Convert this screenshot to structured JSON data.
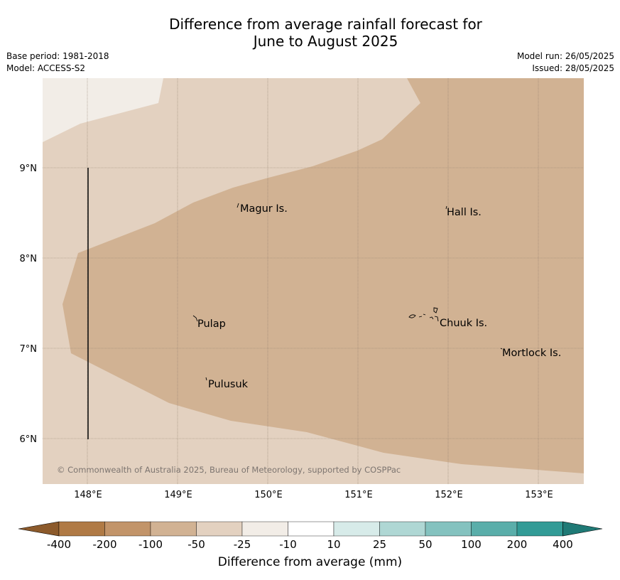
{
  "title": {
    "line1": "Difference from average rainfall forecast for",
    "line2": "June to August 2025"
  },
  "meta": {
    "base_period": "Base period: 1981-2018",
    "model": "Model: ACCESS-S2",
    "model_run": "Model run: 26/05/2025",
    "issued": "Issued: 28/05/2025"
  },
  "map": {
    "lon_ticks": [
      "148°E",
      "149°E",
      "150°E",
      "151°E",
      "152°E",
      "153°E"
    ],
    "lat_ticks": [
      "9°N",
      "8°N",
      "7°N",
      "6°N"
    ],
    "places": [
      {
        "name": "Magur Is."
      },
      {
        "name": "Hall Is."
      },
      {
        "name": "Pulap"
      },
      {
        "name": "Chuuk Is."
      },
      {
        "name": "Mortlock Is."
      },
      {
        "name": "Pulusuk"
      }
    ],
    "copyright": "© Commonwealth of Australia 2025, Bureau of Meteorology, supported by COSPPac",
    "category_colors": {
      "-50 to -10 (light)": "#f2ede7",
      "-100 to -50": "#e3d1c0",
      "-200 to -100": "#d1b293"
    }
  },
  "colorbar": {
    "label": "Difference from average (mm)",
    "ticks": [
      "-400",
      "-200",
      "-100",
      "-50",
      "-25",
      "-10",
      "10",
      "25",
      "50",
      "100",
      "200",
      "400"
    ],
    "colors": [
      "#8c5a2b",
      "#b07a45",
      "#c29469",
      "#d1b293",
      "#e3d1c0",
      "#f2ede7",
      "#ffffff",
      "#d7ebe9",
      "#afd7d4",
      "#84c2bf",
      "#5aaeaa",
      "#329b96",
      "#1f7a76"
    ]
  }
}
